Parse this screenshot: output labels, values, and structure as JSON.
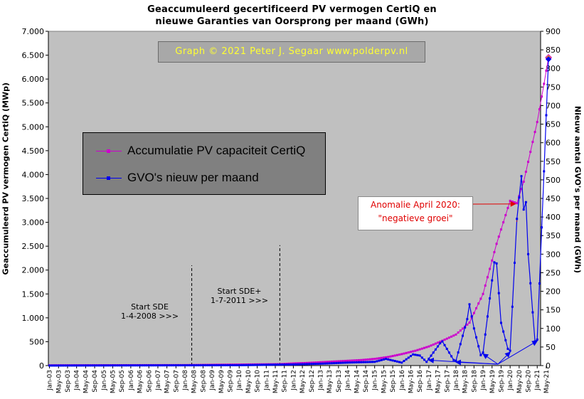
{
  "title_line1": "Geaccumuleerd gecertificeerd PV vermogen CertiQ en",
  "title_line2": "nieuwe Garanties van Oorsprong per maand (GWh)",
  "credit": "Graph © 2021 Peter J. Segaar www.polderpv.nl",
  "annotation_anomaly": [
    "Anomalie April 2020:",
    "\"negatieve groei\""
  ],
  "annotation_sde": [
    "Start SDE",
    "1-4-2008 >>>"
  ],
  "annotation_sdeplus": [
    "Start SDE+",
    "1-7-2011 >>>"
  ],
  "colors": {
    "plot_bg": "#c0c0c0",
    "capacity": "#cc00cc",
    "gvo": "#0000ee",
    "last_point": "#ffaa00",
    "annotation_text": "#e00000",
    "credit_text": "#ffff33"
  },
  "chart_data": {
    "type": "line",
    "ylabel": "Geaccumuleerd PV vermogen CertiQ (MWp)",
    "ylabel_right": "Nieuw aantal GVO's per maand (GWh)",
    "ylim": [
      0,
      7000
    ],
    "ylim_right": [
      0,
      900
    ],
    "yticks": [
      0,
      500,
      1000,
      1500,
      2000,
      2500,
      3000,
      3500,
      4000,
      4500,
      5000,
      5500,
      6000,
      6500,
      7000
    ],
    "ytick_labels": [
      "0",
      "500",
      "1.000",
      "1.500",
      "2.000",
      "2.500",
      "3.000",
      "3.500",
      "4.000",
      "4.500",
      "5.000",
      "5.500",
      "6.000",
      "6.500",
      "7.000"
    ],
    "yticks_right": [
      0,
      50,
      100,
      150,
      200,
      250,
      300,
      350,
      400,
      450,
      500,
      550,
      600,
      650,
      700,
      750,
      800,
      850,
      900
    ],
    "x_start": "Jan-03",
    "x_tick_every_months": 4,
    "x_ticks": [
      "Jan-03",
      "May-03",
      "Sep-03",
      "Jan-04",
      "May-04",
      "Sep-04",
      "Jan-05",
      "May-05",
      "Sep-05",
      "Jan-06",
      "May-06",
      "Sep-06",
      "Jan-07",
      "May-07",
      "Sep-07",
      "Jan-08",
      "May-08",
      "Sep-08",
      "Jan-09",
      "May-09",
      "Sep-09",
      "Jan-10",
      "May-10",
      "Sep-10",
      "Jan-11",
      "May-11",
      "Sep-11",
      "Jan-12",
      "May-12",
      "Sep-12",
      "Jan-13",
      "May-13",
      "Sep-13",
      "Jan-14",
      "May-14",
      "Sep-14",
      "Jan-15",
      "May-15",
      "Sep-15",
      "Jan-16",
      "May-16",
      "Sep-16",
      "Jan-17",
      "May-17",
      "Sep-17",
      "Jan-18",
      "May-18",
      "Sep-18",
      "Jan-19",
      "May-19",
      "Sep-19",
      "Jan-20",
      "May-20",
      "Sep-20",
      "Jan-21",
      "May-21"
    ],
    "vlines": [
      {
        "month": "Apr-08",
        "y_top": 2100
      },
      {
        "month": "Jul-11",
        "y_top": 2520
      }
    ],
    "series": [
      {
        "name": "Accumulatie PV capaciteit CertiQ",
        "axis": "left",
        "months": [
          "Jan-03",
          "Jan-08",
          "Jul-11",
          "Jan-12",
          "Jul-12",
          "Jan-13",
          "Jul-13",
          "Jan-14",
          "Jul-14",
          "Jan-15",
          "Jul-15",
          "Jan-16",
          "Jul-16",
          "Jan-17",
          "Jul-17",
          "Jan-18",
          "Jul-18",
          "Jan-19",
          "Jul-19",
          "Jan-20",
          "Apr-20",
          "Jul-20",
          "Jan-21",
          "Apr-21",
          "Jun-21"
        ],
        "values": [
          5,
          10,
          30,
          45,
          55,
          70,
          85,
          100,
          115,
          140,
          180,
          240,
          310,
          400,
          520,
          650,
          900,
          1500,
          2550,
          3450,
          3400,
          3850,
          5100,
          5900,
          6450
        ]
      },
      {
        "name": "GVO's nieuw per maand",
        "axis": "right",
        "months": [
          "Jan-03",
          "Jan-10",
          "Jan-12",
          "Jan-13",
          "Jan-14",
          "Jan-15",
          "Jun-15",
          "Jan-16",
          "Jun-16",
          "Sep-16",
          "Dec-16",
          "Jun-17",
          "Jul-17",
          "Dec-17",
          "Jan-18",
          "Jun-18",
          "Jul-18",
          "Sep-18",
          "Dec-18",
          "Jan-19",
          "Jun-19",
          "Jul-19",
          "Sep-19",
          "Dec-19",
          "Jan-20",
          "Apr-20",
          "Jun-20",
          "Jul-20",
          "Aug-20",
          "Sep-20",
          "Dec-20",
          "Jan-21",
          "Jun-21"
        ],
        "values": [
          0,
          1,
          3,
          5,
          8,
          10,
          18,
          8,
          30,
          27,
          10,
          60,
          65,
          15,
          13,
          125,
          165,
          100,
          28,
          35,
          278,
          275,
          115,
          45,
          40,
          395,
          510,
          420,
          440,
          300,
          65,
          70,
          825
        ]
      }
    ]
  }
}
